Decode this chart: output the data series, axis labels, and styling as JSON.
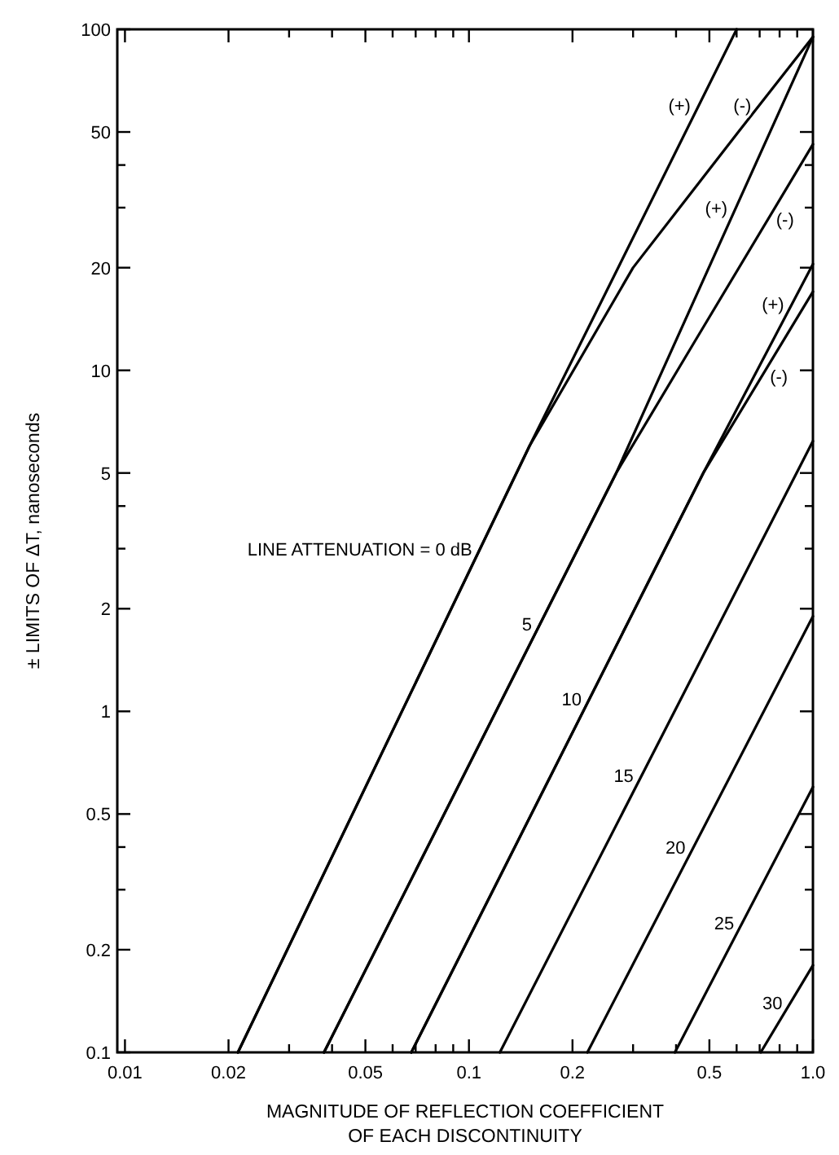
{
  "chart_data": {
    "type": "line",
    "xlabel": "MAGNITUDE OF REFLECTION COEFFICIENT\nOF EACH DISCONTINUITY",
    "ylabel": "± LIMITS OF ΔT, nanoseconds",
    "log": "xy",
    "grid": false,
    "marker": "none",
    "line_style": "solid",
    "xlim": [
      0.0095,
      1.0
    ],
    "xticks": [
      0.01,
      0.02,
      {
        "value": 0.03,
        "label": null
      },
      {
        "value": 0.04,
        "label": null
      },
      0.05,
      {
        "value": 0.06,
        "label": null
      },
      {
        "value": 0.07,
        "label": null
      },
      {
        "value": 0.08,
        "label": null
      },
      {
        "value": 0.09,
        "label": null
      },
      0.1,
      0.2,
      {
        "value": 0.3,
        "label": null
      },
      {
        "value": 0.4,
        "label": null
      },
      0.5,
      {
        "value": 0.6,
        "label": null
      },
      {
        "value": 0.7,
        "label": null
      },
      {
        "value": 0.8,
        "label": null
      },
      {
        "value": 0.9,
        "label": null
      },
      {
        "value": 1.0,
        "label": "1.0"
      }
    ],
    "ylim": [
      0.1,
      100
    ],
    "yticks": [
      0.1,
      0.2,
      {
        "value": 0.3,
        "label": null
      },
      {
        "value": 0.4,
        "label": null
      },
      0.5,
      1,
      2,
      {
        "value": 3,
        "label": null
      },
      {
        "value": 4,
        "label": null
      },
      5,
      10,
      20,
      {
        "value": 30,
        "label": null
      },
      {
        "value": 40,
        "label": null
      },
      50,
      100
    ],
    "series": [
      {
        "color": "#000000",
        "x": [
          0.0213,
          0.15,
          0.6
        ],
        "values": [
          0.1,
          6,
          100
        ]
      },
      {
        "color": "#000000",
        "x": [
          0.0213,
          0.15,
          0.3,
          0.607,
          1.0
        ],
        "values": [
          0.1,
          6,
          20,
          50,
          95
        ]
      },
      {
        "color": "#000000",
        "x": [
          0.0379,
          0.268,
          1.0
        ],
        "values": [
          0.1,
          5,
          95
        ]
      },
      {
        "color": "#000000",
        "x": [
          0.0379,
          0.268,
          0.45,
          1.0
        ],
        "values": [
          0.1,
          5,
          12,
          46
        ]
      },
      {
        "color": "#000000",
        "x": [
          0.068,
          0.48,
          1.0
        ],
        "values": [
          0.1,
          5,
          20.5
        ]
      },
      {
        "color": "#000000",
        "x": [
          0.068,
          0.48,
          1.0
        ],
        "values": [
          0.1,
          5,
          17
        ]
      },
      {
        "color": "#000000",
        "x": [
          0.123,
          1.0
        ],
        "values": [
          0.1,
          6.2
        ]
      },
      {
        "color": "#000000",
        "x": [
          0.221,
          1.0
        ],
        "values": [
          0.1,
          1.9
        ]
      },
      {
        "color": "#000000",
        "x": [
          0.397,
          1.0
        ],
        "values": [
          0.1,
          0.6
        ]
      },
      {
        "color": "#000000",
        "x": [
          0.705,
          1.0
        ],
        "values": [
          0.1,
          0.18
        ]
      }
    ],
    "annotations": [
      {
        "text": "LINE ATTENUATION = 0 dB",
        "x": 0.108,
        "y": 3
      },
      {
        "text": "5",
        "x": 0.161,
        "y": 1.8
      },
      {
        "text": "10",
        "x": 0.2245,
        "y": 1.09
      },
      {
        "text": "15",
        "x": 0.318,
        "y": 0.65
      },
      {
        "text": "20",
        "x": 0.45,
        "y": 0.4
      },
      {
        "text": "25",
        "x": 0.623,
        "y": 0.24
      },
      {
        "text": "30",
        "x": 0.861,
        "y": 0.14
      },
      {
        "text": "(+)",
        "x": 0.466,
        "y": 60
      },
      {
        "text": "(-)",
        "x": 0.699,
        "y": 60
      },
      {
        "text": "(+)",
        "x": 0.596,
        "y": 30
      },
      {
        "text": "(-)",
        "x": 0.74,
        "y": 27.7
      },
      {
        "text": "(+)",
        "x": 0.871,
        "y": 15.7
      },
      {
        "text": "(-)",
        "x": 0.71,
        "y": 9.6
      }
    ]
  }
}
